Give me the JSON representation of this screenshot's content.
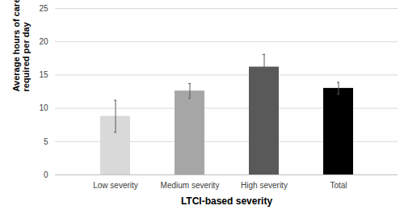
{
  "chart_data": {
    "type": "bar",
    "x_label": "LTCI-based severity",
    "y_label": "Average hours of care required per day",
    "categories": [
      "Low severity",
      "Medium severity",
      "High severity",
      "Total"
    ],
    "values": [
      8.8,
      12.6,
      16.2,
      13.0
    ],
    "errors": [
      2.4,
      1.1,
      1.9,
      0.9
    ],
    "colors": [
      "#d9d9d9",
      "#a6a6a6",
      "#595959",
      "#000000"
    ],
    "ylim": [
      0,
      25
    ],
    "yticks": [
      0,
      5,
      10,
      15,
      20,
      25
    ],
    "grid": true
  }
}
